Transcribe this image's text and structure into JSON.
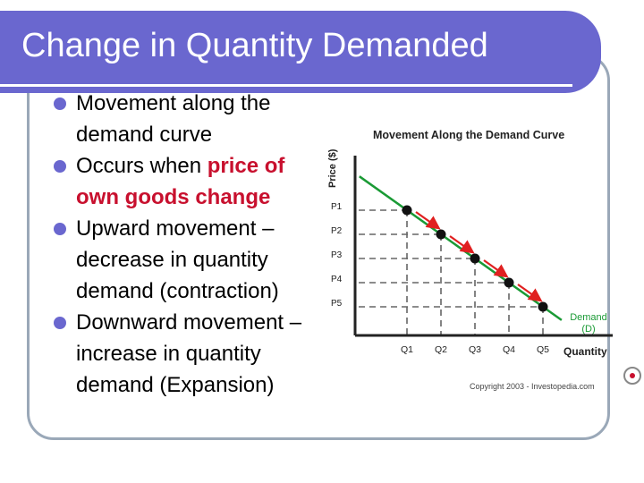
{
  "slide": {
    "title": "Change in Quantity Demanded",
    "colors": {
      "title_bar": "#6a67cf",
      "bullet": "#6a67cf",
      "highlight": "#c8102e"
    },
    "bullets": [
      {
        "text": "Movement along the demand curve"
      },
      {
        "text_before": "Occurs when ",
        "highlight": "price of own goods change"
      },
      {
        "text": "Upward movement – decrease in quantity demand (contraction)"
      },
      {
        "text": "Downward movement – increase in quantity demand (Expansion)"
      }
    ]
  },
  "chart_data": {
    "type": "line",
    "title": "Movement Along the Demand Curve",
    "xlabel": "Quantity",
    "ylabel": "Price ($)",
    "x_ticks": [
      "Q1",
      "Q2",
      "Q3",
      "Q4",
      "Q5"
    ],
    "y_ticks": [
      "P1",
      "P2",
      "P3",
      "P4",
      "P5"
    ],
    "series": [
      {
        "name": "Demand (D)",
        "label_lines": [
          "Demand",
          "(D)"
        ],
        "color": "#1a9a35",
        "x": [
          1,
          2,
          3,
          4,
          5
        ],
        "y": [
          5,
          4,
          3,
          2,
          1
        ]
      }
    ],
    "points": [
      {
        "x": "Q1",
        "y": "P1"
      },
      {
        "x": "Q2",
        "y": "P2"
      },
      {
        "x": "Q3",
        "y": "P3"
      },
      {
        "x": "Q4",
        "y": "P4"
      },
      {
        "x": "Q5",
        "y": "P5"
      }
    ],
    "arrow_color": "#e02020",
    "guide_lines": "dashed",
    "copyright": "Copyright 2003 - Investopedia.com"
  }
}
